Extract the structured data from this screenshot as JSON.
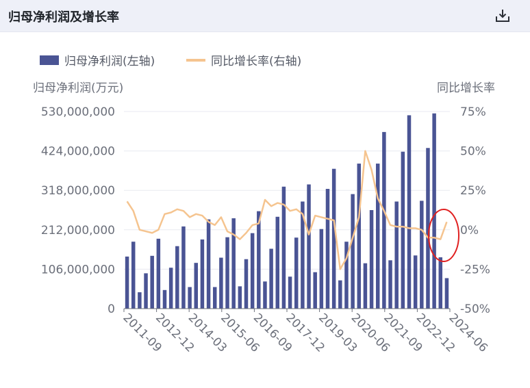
{
  "card": {
    "title": "归母净利润及增长率"
  },
  "chart_data": {
    "type": "bar",
    "legend": [
      "归母净利润(左轴)",
      "同比增长率(右轴)"
    ],
    "y_left_title": "归母净利润(万元)",
    "y_right_title": "同比增长率",
    "y_left_ticks": [
      "0",
      "106,000,000",
      "212,000,000",
      "318,000,000",
      "424,000,000",
      "530,000,000"
    ],
    "y_right_ticks": [
      "-50%",
      "-25%",
      "0%",
      "25%",
      "50%",
      "75%"
    ],
    "ylim_left": [
      0,
      530000000
    ],
    "ylim_right": [
      -50,
      75
    ],
    "x_tick_labels": [
      "2011-09",
      "2012-12",
      "2014-03",
      "2015-06",
      "2016-09",
      "2017-12",
      "2019-03",
      "2020-06",
      "2021-09",
      "2022-12",
      "2024-06"
    ],
    "series": [
      {
        "name": "归母净利润(左轴)",
        "type": "bar",
        "color": "#4a5494",
        "values": [
          140000000,
          180000000,
          44000000,
          95000000,
          142000000,
          188000000,
          50000000,
          110000000,
          168000000,
          221000000,
          58000000,
          123000000,
          186000000,
          240000000,
          58000000,
          137000000,
          192000000,
          243000000,
          60000000,
          133000000,
          203000000,
          262000000,
          73000000,
          161000000,
          247000000,
          328000000,
          86000000,
          191000000,
          288000000,
          334000000,
          98000000,
          214000000,
          322000000,
          376000000,
          76000000,
          180000000,
          308000000,
          390000000,
          122000000,
          265000000,
          390000000,
          475000000,
          130000000,
          288000000,
          422000000,
          520000000,
          143000000,
          290000000,
          432000000,
          525000000,
          138000000,
          82000000
        ]
      },
      {
        "name": "同比增长率(右轴)",
        "type": "line",
        "color": "#f5c48f",
        "values": [
          18,
          12,
          0,
          -1,
          -2,
          0,
          10,
          11,
          13,
          12,
          8,
          10,
          9,
          5,
          3,
          8,
          -1,
          -3,
          -6,
          -2,
          3,
          4,
          19,
          15,
          17,
          16,
          12,
          13,
          10,
          -3,
          9,
          8,
          7,
          6,
          -25,
          -18,
          -5,
          8,
          50,
          38,
          20,
          12,
          3,
          2,
          2,
          1,
          1,
          0,
          -5,
          -5,
          -6,
          5
        ]
      }
    ]
  }
}
